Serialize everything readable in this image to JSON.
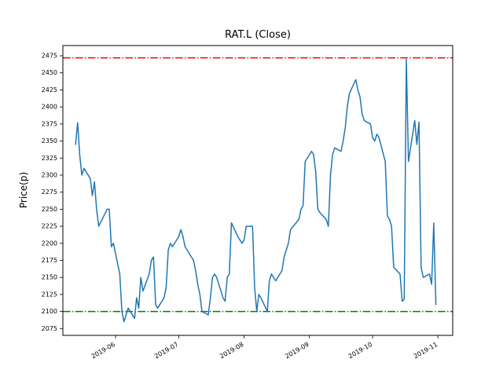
{
  "figure": {
    "title": "RAT.L (Close)",
    "background_color": "#ffffff"
  },
  "chart_data": {
    "type": "line",
    "title": "RAT.L (Close)",
    "xlabel": "",
    "ylabel": "Price(p)",
    "grid": false,
    "legend": null,
    "line_color": "#1f77b4",
    "xlim": [
      "2019-05-07",
      "2019-11-08"
    ],
    "ylim": [
      2065,
      2490
    ],
    "yticks": [
      2075,
      2100,
      2125,
      2150,
      2175,
      2200,
      2225,
      2250,
      2275,
      2300,
      2325,
      2350,
      2375,
      2400,
      2425,
      2450,
      2475
    ],
    "xticks": [
      {
        "value": "2019-06-01",
        "label": "2019-06"
      },
      {
        "value": "2019-07-01",
        "label": "2019-07"
      },
      {
        "value": "2019-08-01",
        "label": "2019-08"
      },
      {
        "value": "2019-09-01",
        "label": "2019-09"
      },
      {
        "value": "2019-10-01",
        "label": "2019-10"
      },
      {
        "value": "2019-11-01",
        "label": "2019-11"
      }
    ],
    "hlines": [
      {
        "name": "upper-band",
        "value": 2472,
        "color": "#ff0000",
        "linestyle": "dashdot"
      },
      {
        "name": "lower-band",
        "value": 2100,
        "color": "#008000",
        "linestyle": "dashdot"
      }
    ],
    "series": [
      {
        "name": "Close",
        "color": "#1f77b4",
        "points": [
          [
            "2019-05-13",
            2345
          ],
          [
            "2019-05-14",
            2377
          ],
          [
            "2019-05-15",
            2330
          ],
          [
            "2019-05-16",
            2300
          ],
          [
            "2019-05-17",
            2310
          ],
          [
            "2019-05-20",
            2295
          ],
          [
            "2019-05-21",
            2270
          ],
          [
            "2019-05-22",
            2290
          ],
          [
            "2019-05-23",
            2250
          ],
          [
            "2019-05-24",
            2225
          ],
          [
            "2019-05-28",
            2250
          ],
          [
            "2019-05-29",
            2250
          ],
          [
            "2019-05-30",
            2195
          ],
          [
            "2019-05-31",
            2200
          ],
          [
            "2019-06-03",
            2155
          ],
          [
            "2019-06-04",
            2100
          ],
          [
            "2019-06-05",
            2085
          ],
          [
            "2019-06-06",
            2095
          ],
          [
            "2019-06-07",
            2105
          ],
          [
            "2019-06-10",
            2090
          ],
          [
            "2019-06-11",
            2120
          ],
          [
            "2019-06-12",
            2105
          ],
          [
            "2019-06-13",
            2150
          ],
          [
            "2019-06-14",
            2130
          ],
          [
            "2019-06-17",
            2155
          ],
          [
            "2019-06-18",
            2175
          ],
          [
            "2019-06-19",
            2180
          ],
          [
            "2019-06-20",
            2110
          ],
          [
            "2019-06-21",
            2105
          ],
          [
            "2019-06-24",
            2120
          ],
          [
            "2019-06-25",
            2135
          ],
          [
            "2019-06-26",
            2190
          ],
          [
            "2019-06-27",
            2200
          ],
          [
            "2019-06-28",
            2195
          ],
          [
            "2019-07-01",
            2210
          ],
          [
            "2019-07-02",
            2220
          ],
          [
            "2019-07-03",
            2210
          ],
          [
            "2019-07-04",
            2195
          ],
          [
            "2019-07-05",
            2190
          ],
          [
            "2019-07-08",
            2175
          ],
          [
            "2019-07-09",
            2160
          ],
          [
            "2019-07-10",
            2140
          ],
          [
            "2019-07-11",
            2125
          ],
          [
            "2019-07-12",
            2100
          ],
          [
            "2019-07-15",
            2095
          ],
          [
            "2019-07-16",
            2120
          ],
          [
            "2019-07-17",
            2150
          ],
          [
            "2019-07-18",
            2155
          ],
          [
            "2019-07-19",
            2150
          ],
          [
            "2019-07-22",
            2120
          ],
          [
            "2019-07-23",
            2115
          ],
          [
            "2019-07-24",
            2150
          ],
          [
            "2019-07-25",
            2155
          ],
          [
            "2019-07-26",
            2230
          ],
          [
            "2019-07-29",
            2210
          ],
          [
            "2019-07-30",
            2205
          ],
          [
            "2019-07-31",
            2200
          ],
          [
            "2019-08-01",
            2205
          ],
          [
            "2019-08-02",
            2225
          ],
          [
            "2019-08-05",
            2225
          ],
          [
            "2019-08-06",
            2135
          ],
          [
            "2019-08-07",
            2100
          ],
          [
            "2019-08-08",
            2125
          ],
          [
            "2019-08-09",
            2120
          ],
          [
            "2019-08-12",
            2100
          ],
          [
            "2019-08-13",
            2145
          ],
          [
            "2019-08-14",
            2155
          ],
          [
            "2019-08-15",
            2150
          ],
          [
            "2019-08-16",
            2145
          ],
          [
            "2019-08-19",
            2160
          ],
          [
            "2019-08-20",
            2180
          ],
          [
            "2019-08-21",
            2190
          ],
          [
            "2019-08-22",
            2200
          ],
          [
            "2019-08-23",
            2220
          ],
          [
            "2019-08-27",
            2235
          ],
          [
            "2019-08-28",
            2250
          ],
          [
            "2019-08-29",
            2255
          ],
          [
            "2019-08-30",
            2320
          ],
          [
            "2019-09-02",
            2335
          ],
          [
            "2019-09-03",
            2330
          ],
          [
            "2019-09-04",
            2305
          ],
          [
            "2019-09-05",
            2250
          ],
          [
            "2019-09-06",
            2245
          ],
          [
            "2019-09-09",
            2235
          ],
          [
            "2019-09-10",
            2225
          ],
          [
            "2019-09-11",
            2300
          ],
          [
            "2019-09-12",
            2330
          ],
          [
            "2019-09-13",
            2340
          ],
          [
            "2019-09-16",
            2335
          ],
          [
            "2019-09-17",
            2350
          ],
          [
            "2019-09-18",
            2370
          ],
          [
            "2019-09-19",
            2400
          ],
          [
            "2019-09-20",
            2420
          ],
          [
            "2019-09-23",
            2440
          ],
          [
            "2019-09-24",
            2425
          ],
          [
            "2019-09-25",
            2415
          ],
          [
            "2019-09-26",
            2390
          ],
          [
            "2019-09-27",
            2380
          ],
          [
            "2019-09-30",
            2375
          ],
          [
            "2019-10-01",
            2355
          ],
          [
            "2019-10-02",
            2350
          ],
          [
            "2019-10-03",
            2360
          ],
          [
            "2019-10-04",
            2355
          ],
          [
            "2019-10-07",
            2320
          ],
          [
            "2019-10-08",
            2240
          ],
          [
            "2019-10-09",
            2235
          ],
          [
            "2019-10-10",
            2225
          ],
          [
            "2019-10-11",
            2165
          ],
          [
            "2019-10-14",
            2155
          ],
          [
            "2019-10-15",
            2115
          ],
          [
            "2019-10-16",
            2118
          ],
          [
            "2019-10-17",
            2470
          ],
          [
            "2019-10-18",
            2320
          ],
          [
            "2019-10-21",
            2380
          ],
          [
            "2019-10-22",
            2345
          ],
          [
            "2019-10-23",
            2378
          ],
          [
            "2019-10-24",
            2165
          ],
          [
            "2019-10-25",
            2150
          ],
          [
            "2019-10-28",
            2155
          ],
          [
            "2019-10-29",
            2140
          ],
          [
            "2019-10-30",
            2230
          ],
          [
            "2019-10-31",
            2110
          ]
        ]
      }
    ]
  }
}
